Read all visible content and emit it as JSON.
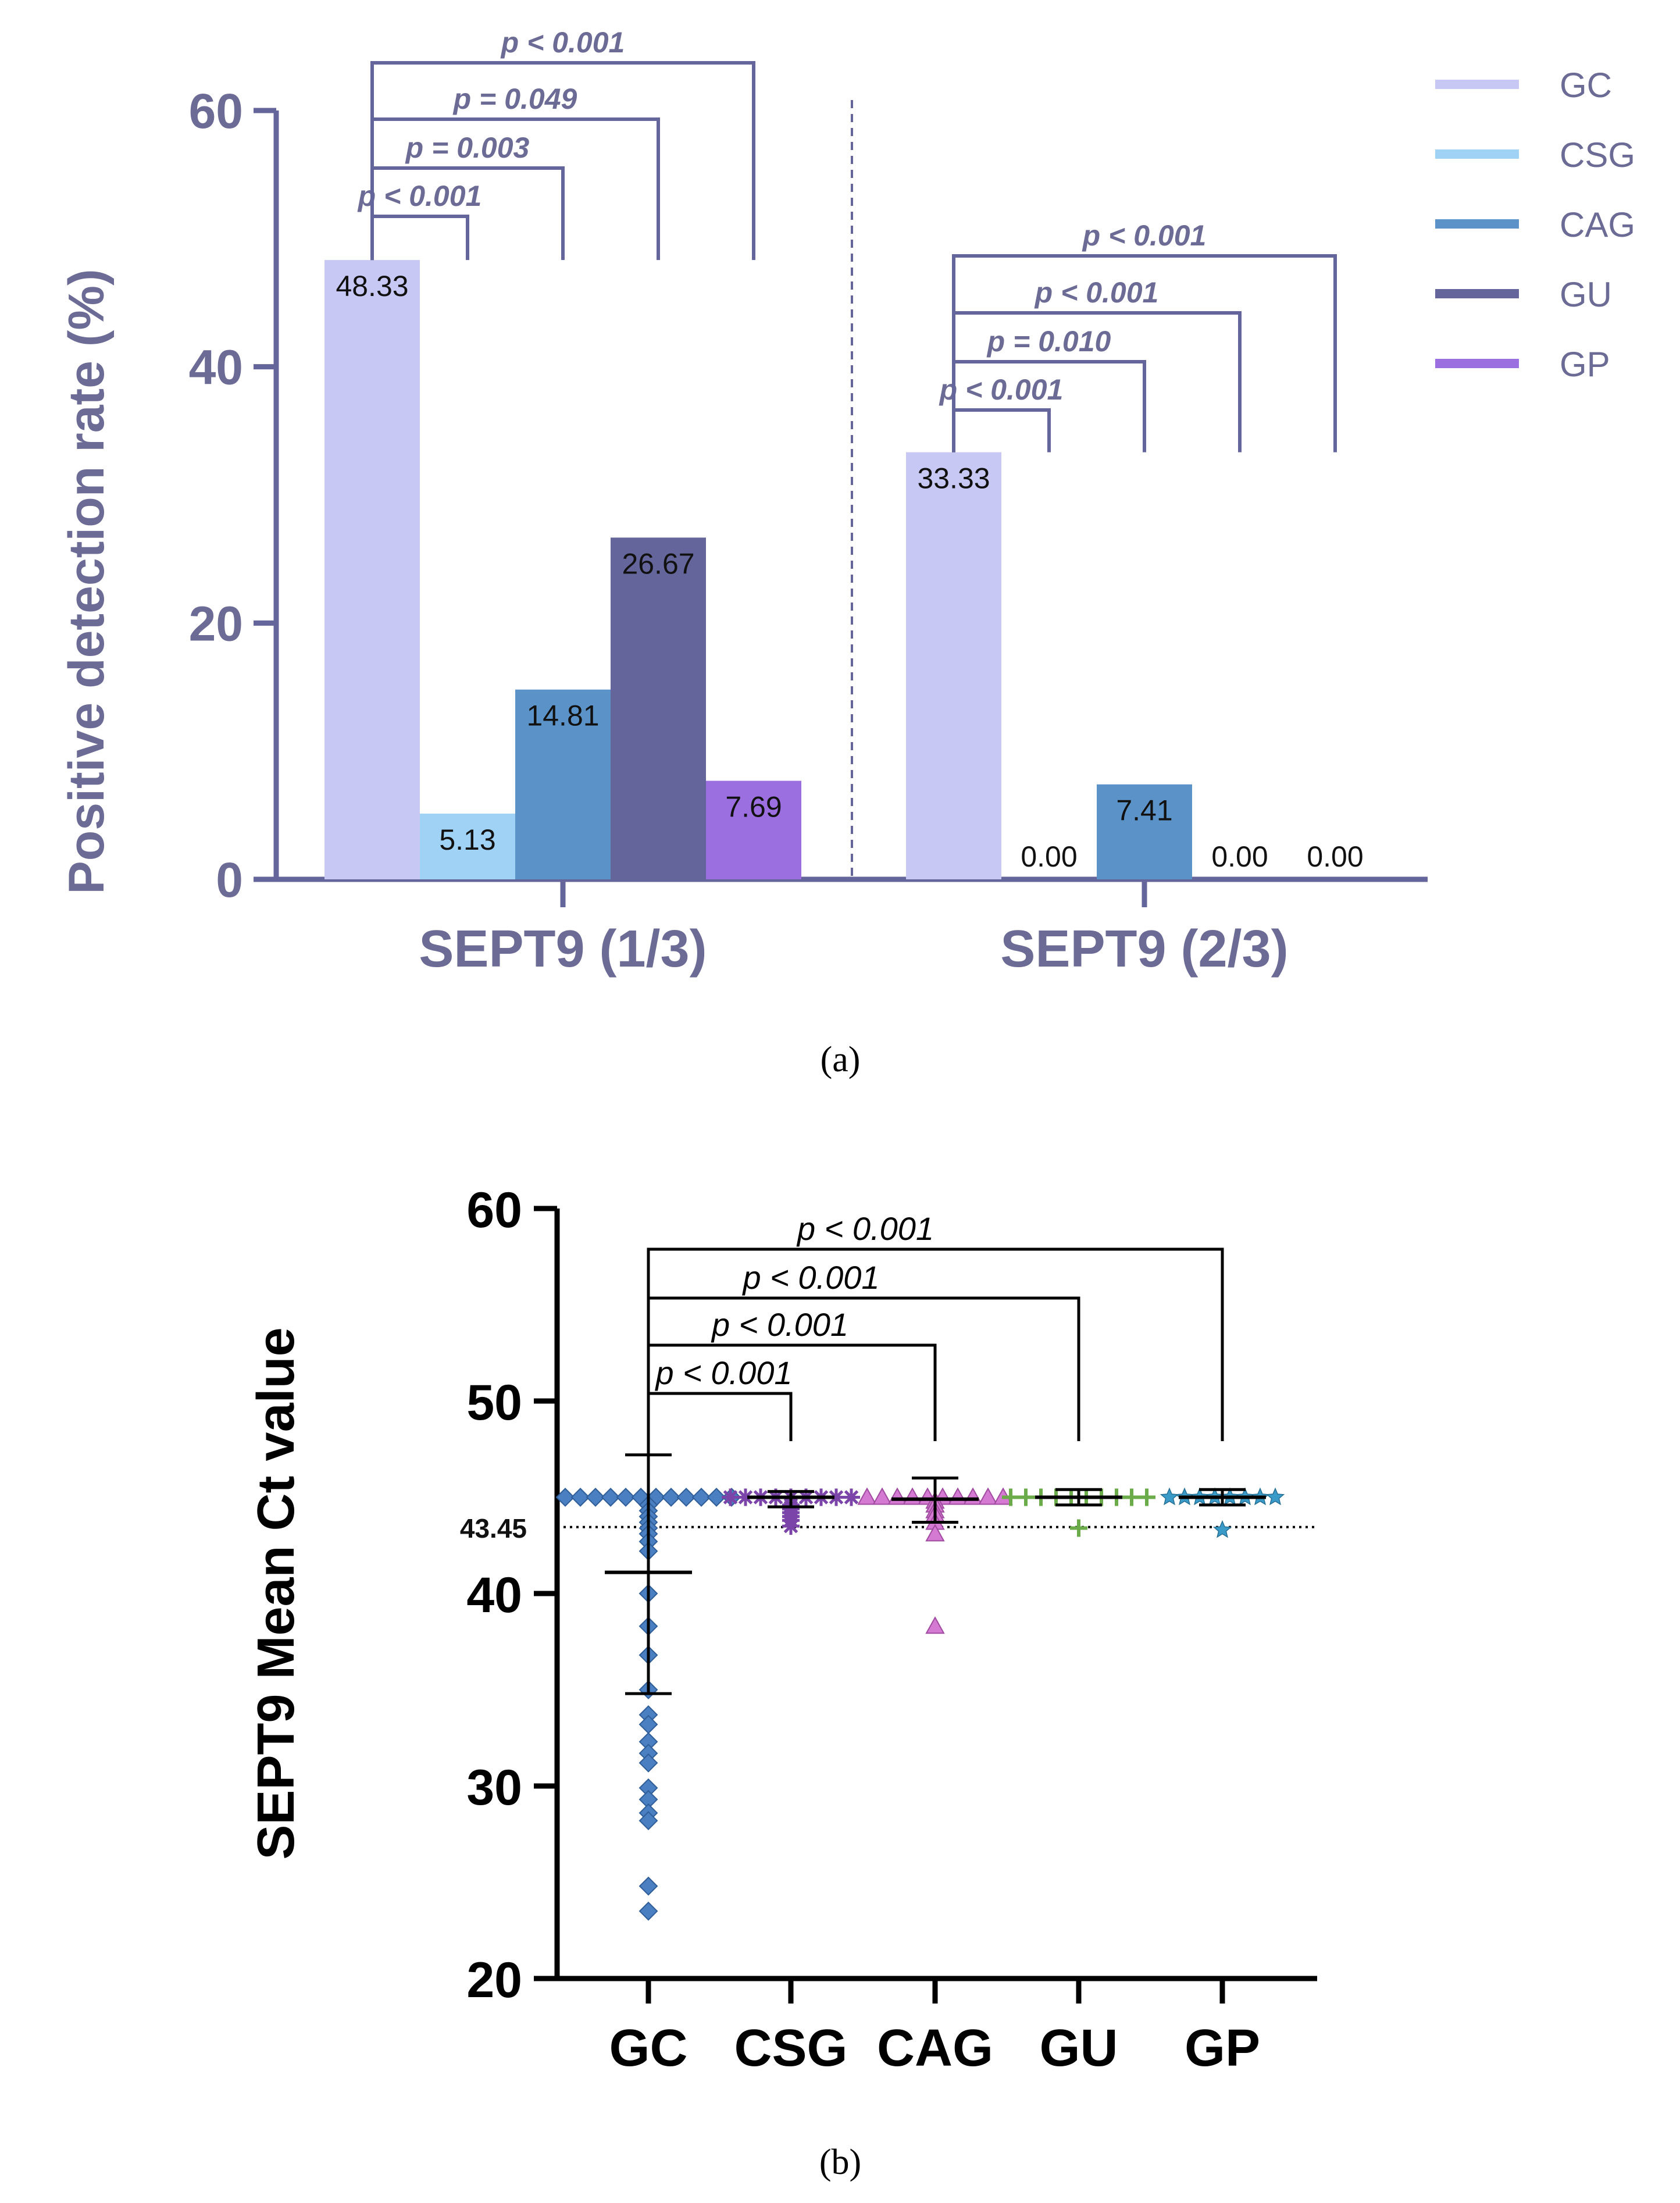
{
  "chart_data": [
    {
      "type": "bar",
      "panel_label": "(a)",
      "ylabel": "Positive detection rate (%)",
      "ylim": [
        0,
        60
      ],
      "yticks": [
        "0",
        "20",
        "40",
        "60"
      ],
      "categories": [
        "SEPT9 (1/3)",
        "SEPT9 (2/3)"
      ],
      "series": [
        {
          "name": "GC",
          "color": "#c8c8f4",
          "values": [
            48.33,
            33.33
          ],
          "labels": [
            "48.33",
            "33.33"
          ]
        },
        {
          "name": "CSG",
          "color": "#9fd2f5",
          "values": [
            5.13,
            0.0
          ],
          "labels": [
            "5.13",
            "0.00"
          ]
        },
        {
          "name": "CAG",
          "color": "#5b93c9",
          "values": [
            14.81,
            7.41
          ],
          "labels": [
            "14.81",
            "7.41"
          ]
        },
        {
          "name": "GU",
          "color": "#64659a",
          "values": [
            26.67,
            0.0
          ],
          "labels": [
            "26.67",
            "0.00"
          ]
        },
        {
          "name": "GP",
          "color": "#9b6fdf",
          "values": [
            7.69,
            0.0
          ],
          "labels": [
            "7.69",
            "0.00"
          ]
        }
      ],
      "comparisons": [
        {
          "group": "SEPT9 (1/3)",
          "from": "GC",
          "to": "CSG",
          "text": "p < 0.001"
        },
        {
          "group": "SEPT9 (1/3)",
          "from": "GC",
          "to": "CAG",
          "text": "p = 0.003"
        },
        {
          "group": "SEPT9 (1/3)",
          "from": "GC",
          "to": "GU",
          "text": "p = 0.049"
        },
        {
          "group": "SEPT9 (1/3)",
          "from": "GC",
          "to": "GP",
          "text": "p < 0.001"
        },
        {
          "group": "SEPT9 (2/3)",
          "from": "GC",
          "to": "CSG",
          "text": "p < 0.001"
        },
        {
          "group": "SEPT9 (2/3)",
          "from": "GC",
          "to": "CAG",
          "text": "p = 0.010"
        },
        {
          "group": "SEPT9 (2/3)",
          "from": "GC",
          "to": "GU",
          "text": "p < 0.001"
        },
        {
          "group": "SEPT9 (2/3)",
          "from": "GC",
          "to": "GP",
          "text": "p < 0.001"
        }
      ],
      "legend_position": "top-right"
    },
    {
      "type": "scatter",
      "panel_label": "(b)",
      "ylabel": "SEPT9 Mean Ct value",
      "ylim": [
        20,
        60
      ],
      "yticks": [
        "20",
        "30",
        "40",
        "50",
        "60"
      ],
      "categories": [
        "GC",
        "CSG",
        "CAG",
        "GU",
        "GP"
      ],
      "reference_line": {
        "value": 43.45,
        "label": "43.45"
      },
      "groups": [
        {
          "name": "GC",
          "color": "#4a7fc1",
          "marker": "diamond",
          "mean": 41.1,
          "err_low": 34.8,
          "err_high": 47.2,
          "points": [
            45,
            45,
            45,
            45,
            45,
            45,
            45,
            45,
            45,
            45,
            45,
            45,
            44.6,
            44.3,
            44,
            43.7,
            43.4,
            43.1,
            42.7,
            42.2,
            40,
            38.3,
            36.8,
            35,
            33.7,
            33.2,
            32.3,
            31.7,
            31.2,
            29.9,
            29.3,
            28.6,
            28.2,
            24.8,
            23.5
          ]
        },
        {
          "name": "CSG",
          "color": "#7b44a8",
          "marker": "asterisk",
          "mean": 45.0,
          "err_low": 44.5,
          "err_high": 45.3,
          "points": [
            45,
            45,
            45,
            45,
            45,
            45,
            45,
            45,
            45,
            44.6,
            44.4,
            44.2,
            44,
            43.8,
            43.5
          ]
        },
        {
          "name": "CAG",
          "color": "#d47ad2",
          "marker": "triangle",
          "mean": 44.9,
          "err_low": 43.7,
          "err_high": 46.0,
          "points": [
            45,
            45,
            45,
            45,
            45,
            45,
            45,
            45,
            45,
            45,
            44.8,
            44.6,
            44.3,
            44.1,
            43.7,
            43.1,
            38.3
          ]
        },
        {
          "name": "GU",
          "color": "#6cab49",
          "marker": "plus",
          "mean": 45.0,
          "err_low": 44.6,
          "err_high": 45.4,
          "points": [
            45,
            45,
            45,
            45,
            45,
            45,
            45,
            45,
            45,
            45,
            43.4
          ]
        },
        {
          "name": "GP",
          "color": "#3b9bc8",
          "marker": "star",
          "mean": 45.0,
          "err_low": 44.6,
          "err_high": 45.4,
          "points": [
            45,
            45,
            45,
            45,
            45,
            45,
            45,
            45,
            43.3
          ]
        }
      ],
      "comparisons": [
        {
          "from": "GC",
          "to": "CSG",
          "text": "p < 0.001"
        },
        {
          "from": "GC",
          "to": "CAG",
          "text": "p < 0.001"
        },
        {
          "from": "GC",
          "to": "GU",
          "text": "p < 0.001"
        },
        {
          "from": "GC",
          "to": "GP",
          "text": "p < 0.001"
        }
      ]
    }
  ]
}
